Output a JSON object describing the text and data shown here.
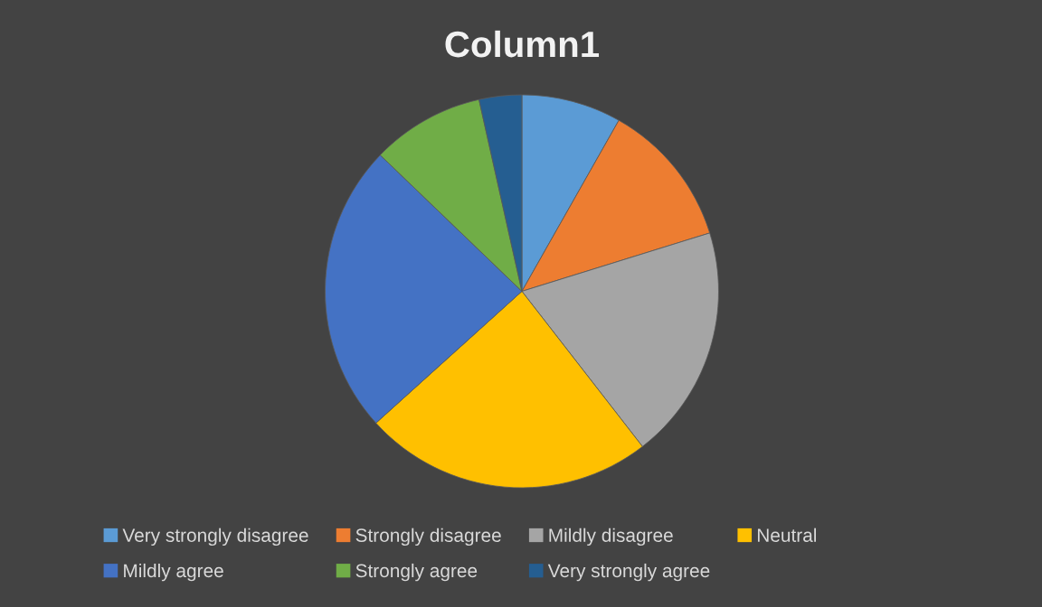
{
  "chart_data": {
    "type": "pie",
    "title": "Column1",
    "categories": [
      "Very strongly disagree",
      "Strongly disagree",
      "Mildly disagree",
      "Neutral",
      "Mildly agree",
      "Strongly agree",
      "Very strongly agree"
    ],
    "values": [
      8.2,
      12.0,
      19.3,
      23.8,
      23.9,
      9.3,
      3.5
    ],
    "colors": [
      "#5b9bd5",
      "#ed7d31",
      "#a5a5a5",
      "#ffc000",
      "#4472c4",
      "#70ad47",
      "#255e91"
    ],
    "legend": "bottom"
  }
}
